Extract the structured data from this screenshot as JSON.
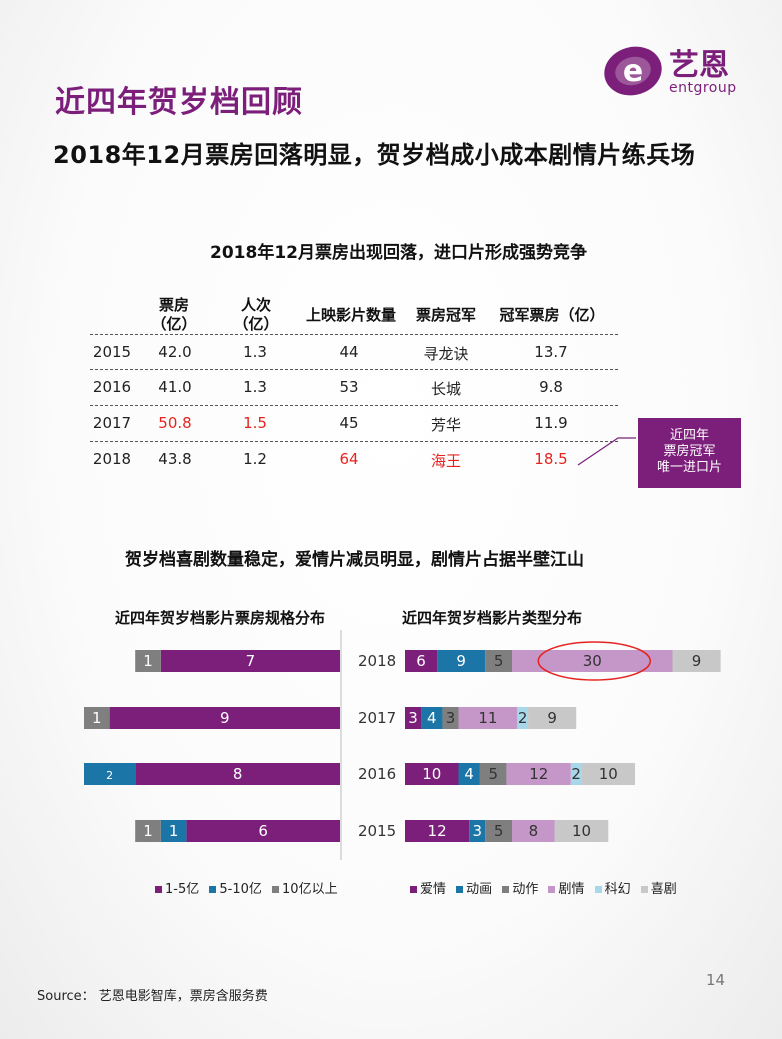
{
  "header": {
    "title": "近四年贺岁档回顾",
    "subtitle": "2018年12月票房回落明显，贺岁档成小成本剧情片练兵场"
  },
  "logo": {
    "cn": "艺恩",
    "en": "entgroup",
    "mark": "e"
  },
  "table_section": {
    "title": "2018年12月票房出现回落，进口片形成强势竞争",
    "headers": [
      [
        "票房",
        "（亿）"
      ],
      [
        "人次",
        "（亿）"
      ],
      [
        "上映影片数量"
      ],
      [
        "票房冠军"
      ],
      [
        "冠军票房（亿）"
      ]
    ],
    "rows": [
      {
        "year": "2015",
        "box": "42.0",
        "people": "1.3",
        "count": "44",
        "champion": "寻龙诀",
        "champ_box": "13.7"
      },
      {
        "year": "2016",
        "box": "41.0",
        "people": "1.3",
        "count": "53",
        "champion": "长城",
        "champ_box": "9.8"
      },
      {
        "year": "2017",
        "box": "50.8",
        "people": "1.5",
        "count": "45",
        "champion": "芳华",
        "champ_box": "11.9"
      },
      {
        "year": "2018",
        "box": "43.8",
        "people": "1.2",
        "count": "64",
        "champion": "海王",
        "champ_box": "18.5"
      }
    ],
    "highlight_color": "#e52420",
    "callout": [
      "近四年",
      "票房冠军",
      "唯一进口片"
    ]
  },
  "charts_section": {
    "title": "贺岁档喜剧数量稳定，爱情片减员明显，剧情片占据半壁江山"
  },
  "colors": {
    "accent": "#7b1f7a",
    "blue": "#1b75a6",
    "gray": "#7f7f7f",
    "pink": "#c597c8",
    "light_blue": "#a9d7ea",
    "light_gray": "#c8c8c8"
  },
  "chart_data": [
    {
      "type": "bar",
      "orientation": "horizontal",
      "stacked": true,
      "title": "近四年贺岁档影片票房规格分布",
      "categories": [
        "2018",
        "2017",
        "2016",
        "2015"
      ],
      "series": [
        {
          "name": "10亿以上",
          "color": "#7f7f7f",
          "values": [
            1,
            1,
            0,
            1
          ]
        },
        {
          "name": "5-10亿",
          "color": "#1b75a6",
          "values": [
            0,
            0,
            2,
            1
          ]
        },
        {
          "name": "1-5亿",
          "color": "#7b1f7a",
          "values": [
            7,
            9,
            8,
            6
          ]
        }
      ],
      "legend": [
        "1-5亿",
        "5-10亿",
        "10亿以上"
      ],
      "legend_position": "bottom"
    },
    {
      "type": "bar",
      "orientation": "horizontal",
      "stacked": true,
      "title": "近四年贺岁档影片类型分布",
      "categories": [
        "2018",
        "2017",
        "2016",
        "2015"
      ],
      "series": [
        {
          "name": "爱情",
          "color": "#7b1f7a",
          "values": [
            6,
            3,
            10,
            12
          ]
        },
        {
          "name": "动画",
          "color": "#1b75a6",
          "values": [
            9,
            4,
            4,
            3
          ]
        },
        {
          "name": "动作",
          "color": "#7f7f7f",
          "values": [
            5,
            3,
            5,
            5
          ]
        },
        {
          "name": "剧情",
          "color": "#c597c8",
          "values": [
            30,
            11,
            12,
            8
          ]
        },
        {
          "name": "科幻",
          "color": "#a9d7ea",
          "values": [
            0,
            2,
            2,
            0
          ]
        },
        {
          "name": "喜剧",
          "color": "#c8c8c8",
          "values": [
            9,
            9,
            10,
            10
          ]
        }
      ],
      "legend": [
        "爱情",
        "动画",
        "动作",
        "剧情",
        "科幻",
        "喜剧"
      ],
      "legend_position": "bottom",
      "highlight": {
        "category": "2018",
        "series": "剧情",
        "value": 30
      }
    }
  ],
  "footer": {
    "source": "Source： 艺恩电影智库，票房含服务费",
    "page_number": "14"
  }
}
